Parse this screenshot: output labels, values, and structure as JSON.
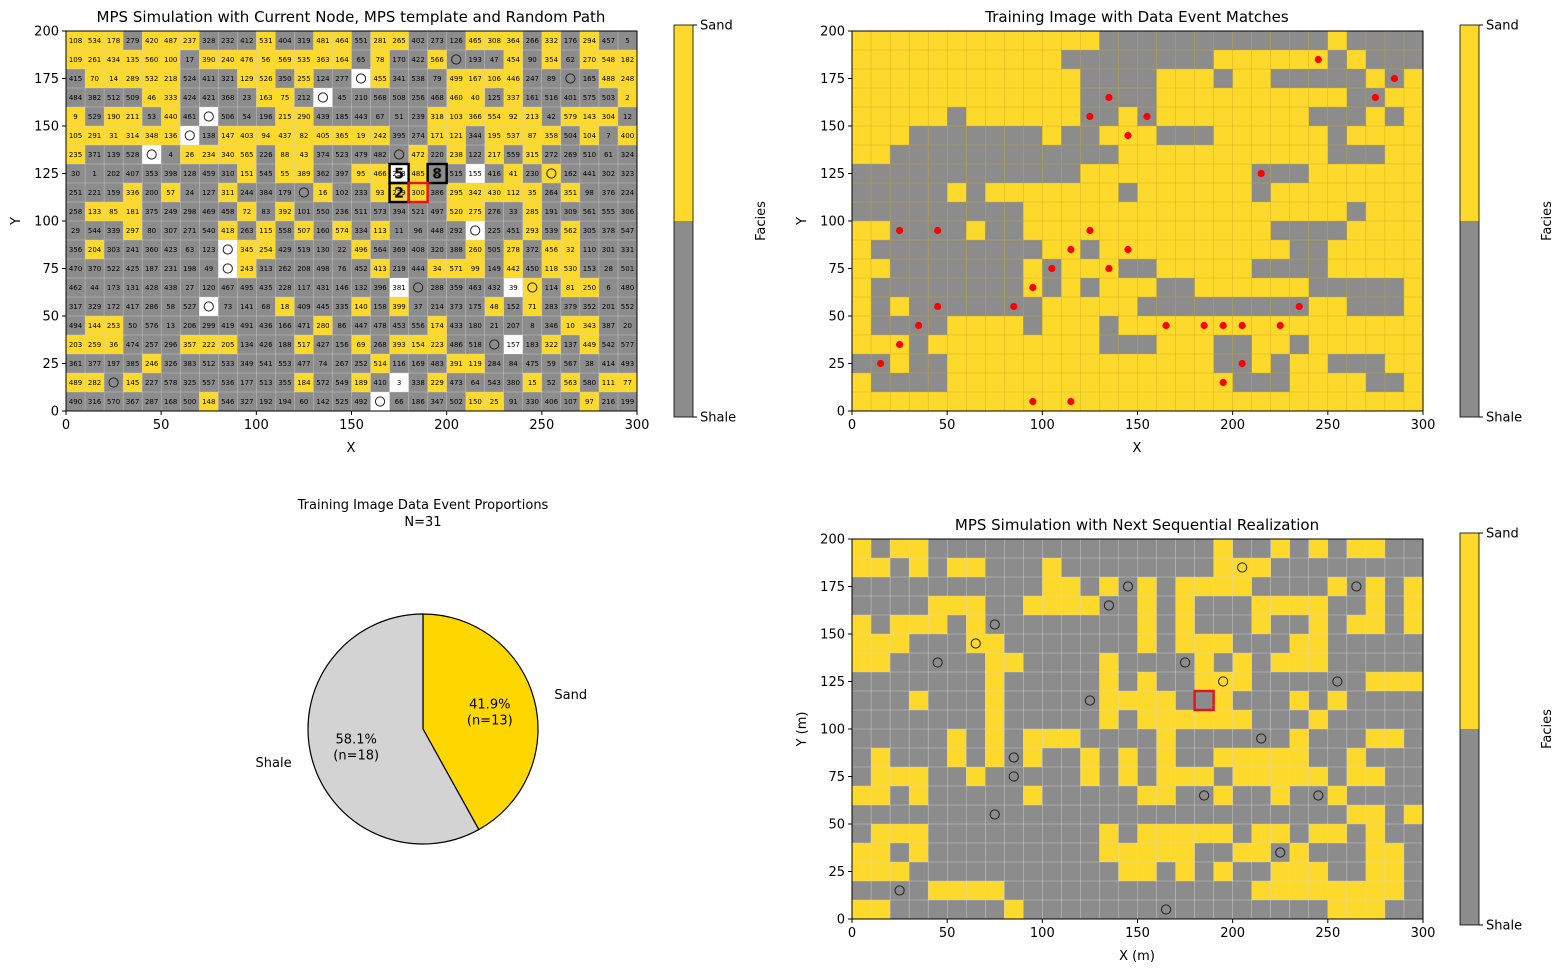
{
  "colors": {
    "sand": "#FDD92B",
    "shale": "#8C8C8C",
    "unsimulated": "#FFFFFF",
    "pie_sand": "#FFD700",
    "pie_shale": "#D3D3D3",
    "match": "#FF0000",
    "current": "#E8111A",
    "template": "#000000"
  },
  "chart_data": [
    {
      "id": "mps-current",
      "type": "heatmap",
      "title": "MPS Simulation with Current Node, MPS template and Random Path",
      "xlabel": "X",
      "ylabel": "Y",
      "xlim": [
        0,
        300
      ],
      "ylim": [
        0,
        200
      ],
      "xticks": [
        0,
        50,
        100,
        150,
        200,
        250,
        300
      ],
      "yticks": [
        0,
        25,
        50,
        75,
        100,
        125,
        150,
        175,
        200
      ],
      "grid": {
        "nx": 30,
        "ny": 20,
        "cell": 10
      },
      "colorbar": {
        "label": "Facies",
        "ticks": [
          "Shale",
          "Sand"
        ]
      },
      "hard_data_marker": "open circle",
      "path_order_rows_top_to_bottom": [
        [
          108,
          534,
          178,
          279,
          420,
          487,
          237,
          328,
          232,
          412,
          531,
          404,
          319,
          481,
          464,
          551,
          281,
          265,
          402,
          273,
          126,
          465,
          308,
          364,
          266,
          332,
          176,
          294,
          457,
          5
        ],
        [
          109,
          261,
          434,
          135,
          560,
          100,
          17,
          390,
          240,
          476,
          56,
          569,
          535,
          363,
          164,
          65,
          78,
          170,
          422,
          566,
          null,
          193,
          47,
          454,
          90,
          354,
          62,
          270,
          548,
          182
        ],
        [
          415,
          70,
          14,
          289,
          532,
          218,
          524,
          411,
          321,
          129,
          526,
          350,
          255,
          124,
          277,
          null,
          455,
          341,
          538,
          79,
          499,
          167,
          106,
          446,
          247,
          89,
          null,
          165,
          488,
          248
        ],
        [
          484,
          382,
          512,
          509,
          46,
          333,
          424,
          421,
          368,
          23,
          163,
          75,
          212,
          null,
          45,
          210,
          568,
          508,
          256,
          468,
          460,
          40,
          125,
          337,
          161,
          516,
          401,
          575,
          503,
          2
        ],
        [
          9,
          529,
          190,
          211,
          53,
          440,
          461,
          null,
          506,
          54,
          196,
          215,
          290,
          439,
          185,
          443,
          67,
          51,
          239,
          318,
          103,
          366,
          554,
          92,
          213,
          42,
          579,
          143,
          304,
          12
        ],
        [
          105,
          291,
          31,
          314,
          348,
          136,
          null,
          138,
          147,
          403,
          94,
          437,
          82,
          405,
          365,
          19,
          242,
          395,
          274,
          171,
          121,
          344,
          195,
          537,
          87,
          358,
          504,
          104,
          7,
          400
        ],
        [
          235,
          371,
          139,
          528,
          null,
          4,
          26,
          234,
          340,
          565,
          226,
          88,
          43,
          374,
          523,
          479,
          482,
          null,
          472,
          220,
          238,
          122,
          217,
          559,
          315,
          272,
          269,
          510,
          61,
          324
        ],
        [
          30,
          1,
          202,
          407,
          353,
          398,
          128,
          459,
          310,
          151,
          545,
          55,
          389,
          362,
          397,
          95,
          466,
          253,
          485,
          8,
          515,
          155,
          416,
          41,
          230,
          null,
          162,
          441,
          302,
          323
        ],
        [
          251,
          221,
          159,
          336,
          200,
          57,
          24,
          127,
          311,
          244,
          384,
          179,
          null,
          16,
          102,
          233,
          93,
          279,
          300,
          386,
          295,
          342,
          430,
          112,
          35,
          264,
          351,
          98,
          376,
          224
        ],
        [
          258,
          133,
          85,
          181,
          375,
          249,
          298,
          469,
          458,
          72,
          83,
          392,
          101,
          550,
          236,
          511,
          573,
          394,
          521,
          497,
          520,
          275,
          276,
          33,
          285,
          191,
          309,
          561,
          555,
          306
        ],
        [
          29,
          544,
          339,
          297,
          80,
          307,
          271,
          540,
          418,
          263,
          115,
          558,
          507,
          160,
          574,
          334,
          113,
          11,
          96,
          448,
          292,
          null,
          225,
          451,
          293,
          539,
          562,
          305,
          378,
          547
        ],
        [
          356,
          204,
          303,
          241,
          360,
          423,
          63,
          123,
          null,
          345,
          254,
          429,
          519,
          130,
          22,
          496,
          564,
          369,
          408,
          320,
          388,
          260,
          505,
          278,
          372,
          456,
          32,
          110,
          301,
          331
        ],
        [
          470,
          370,
          522,
          425,
          187,
          231,
          198,
          49,
          null,
          243,
          313,
          262,
          208,
          498,
          76,
          452,
          413,
          219,
          444,
          34,
          571,
          99,
          149,
          442,
          450,
          118,
          530,
          153,
          28,
          501
        ],
        [
          462,
          44,
          173,
          131,
          428,
          438,
          27,
          120,
          467,
          495,
          435,
          228,
          117,
          431,
          146,
          132,
          396,
          381,
          null,
          288,
          359,
          463,
          432,
          39,
          null,
          114,
          81,
          250,
          6,
          480
        ],
        [
          317,
          329,
          172,
          417,
          286,
          58,
          527,
          null,
          73,
          141,
          68,
          18,
          409,
          445,
          335,
          140,
          158,
          399,
          37,
          214,
          373,
          175,
          48,
          152,
          71,
          283,
          379,
          352,
          201,
          552
        ],
        [
          494,
          144,
          253,
          50,
          576,
          13,
          206,
          299,
          419,
          491,
          436,
          166,
          471,
          280,
          86,
          447,
          478,
          453,
          556,
          174,
          433,
          180,
          21,
          207,
          8,
          346,
          10,
          343,
          387,
          20
        ],
        [
          203,
          259,
          36,
          474,
          257,
          296,
          357,
          222,
          205,
          134,
          426,
          188,
          517,
          427,
          156,
          69,
          268,
          393,
          154,
          223,
          486,
          518,
          null,
          157,
          183,
          322,
          137,
          449,
          542,
          577
        ],
        [
          361,
          377,
          197,
          385,
          246,
          326,
          383,
          512,
          533,
          349,
          541,
          553,
          477,
          74,
          267,
          252,
          514,
          116,
          169,
          483,
          391,
          119,
          284,
          84,
          475,
          59,
          567,
          38,
          414,
          493
        ],
        [
          489,
          282,
          null,
          145,
          227,
          578,
          325,
          557,
          536,
          177,
          513,
          355,
          184,
          572,
          549,
          189,
          410,
          3,
          338,
          229,
          473,
          64,
          543,
          380,
          15,
          52,
          563,
          580,
          111,
          77
        ],
        [
          490,
          316,
          570,
          367,
          287,
          168,
          500,
          148,
          546,
          327,
          192,
          194,
          60,
          142,
          525,
          492,
          null,
          66,
          186,
          347,
          502,
          150,
          25,
          91,
          330,
          406,
          107,
          97,
          216,
          199
        ]
      ],
      "current_node": [
        185,
        115
      ],
      "current_node_label": "",
      "template_nodes": [
        [
          175,
          125
        ],
        [
          195,
          125
        ],
        [
          175,
          115
        ]
      ],
      "template_node_labels": [
        "5",
        "8",
        "2"
      ]
    },
    {
      "id": "training-image",
      "type": "heatmap",
      "title": "Training Image with Data Event Matches",
      "xlabel": "X",
      "ylabel": "Y",
      "xlim": [
        0,
        300
      ],
      "ylim": [
        0,
        200
      ],
      "xticks": [
        0,
        50,
        100,
        150,
        200,
        250,
        300
      ],
      "yticks": [
        0,
        25,
        50,
        75,
        100,
        125,
        150,
        175,
        200
      ],
      "colorbar": {
        "label": "Facies",
        "ticks": [
          "Shale",
          "Sand"
        ]
      },
      "match_points": [
        [
          245,
          185
        ],
        [
          285,
          175
        ],
        [
          135,
          165
        ],
        [
          275,
          165
        ],
        [
          125,
          155
        ],
        [
          155,
          155
        ],
        [
          145,
          145
        ],
        [
          215,
          125
        ],
        [
          25,
          95
        ],
        [
          45,
          95
        ],
        [
          125,
          95
        ],
        [
          115,
          85
        ],
        [
          145,
          85
        ],
        [
          105,
          75
        ],
        [
          135,
          75
        ],
        [
          95,
          65
        ],
        [
          45,
          55
        ],
        [
          85,
          55
        ],
        [
          235,
          55
        ],
        [
          35,
          45
        ],
        [
          165,
          45
        ],
        [
          185,
          45
        ],
        [
          195,
          45
        ],
        [
          205,
          45
        ],
        [
          225,
          45
        ],
        [
          25,
          35
        ],
        [
          15,
          25
        ],
        [
          205,
          25
        ],
        [
          195,
          15
        ],
        [
          95,
          5
        ],
        [
          115,
          5
        ]
      ]
    },
    {
      "id": "proportions",
      "type": "pie",
      "title": "Training Image Data Event Proportions",
      "subtitle": "N=31",
      "slices": [
        {
          "label": "Sand",
          "value": 13,
          "pct_label": "41.9%",
          "n_label": "(n=13)"
        },
        {
          "label": "Shale",
          "value": 18,
          "pct_label": "58.1%",
          "n_label": "(n=18)"
        }
      ]
    },
    {
      "id": "mps-next",
      "type": "heatmap",
      "title": "MPS Simulation with Next Sequential Realization",
      "xlabel": "X (m)",
      "ylabel": "Y (m)",
      "xlim": [
        0,
        300
      ],
      "ylim": [
        0,
        200
      ],
      "xticks": [
        0,
        50,
        100,
        150,
        200,
        250,
        300
      ],
      "yticks": [
        0,
        25,
        50,
        75,
        100,
        125,
        150,
        175,
        200
      ],
      "colorbar": {
        "label": "Facies",
        "ticks": [
          "Shale",
          "Sand"
        ]
      },
      "highlight_node": [
        185,
        115
      ],
      "hard_data": [
        [
          205,
          185
        ],
        [
          145,
          175
        ],
        [
          265,
          175
        ],
        [
          135,
          165
        ],
        [
          75,
          155
        ],
        [
          65,
          145
        ],
        [
          45,
          135
        ],
        [
          175,
          135
        ],
        [
          195,
          125
        ],
        [
          255,
          125
        ],
        [
          125,
          115
        ],
        [
          215,
          95
        ],
        [
          85,
          85
        ],
        [
          85,
          75
        ],
        [
          185,
          65
        ],
        [
          245,
          65
        ],
        [
          75,
          55
        ],
        [
          225,
          35
        ],
        [
          25,
          15
        ],
        [
          165,
          5
        ]
      ]
    }
  ]
}
